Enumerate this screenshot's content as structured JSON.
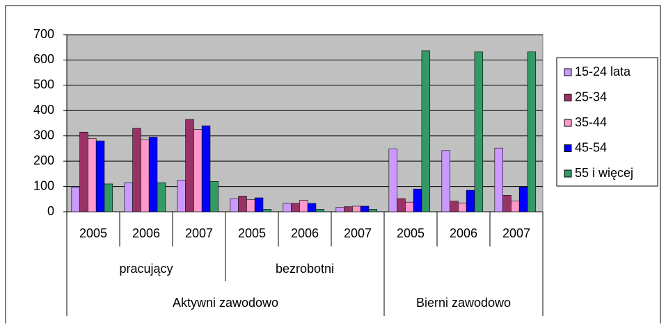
{
  "chart_data": {
    "type": "bar",
    "category_groups": [
      {
        "name": "Aktywni zawodowo",
        "groups": [
          {
            "name": "pracujący",
            "categories": [
              "2005",
              "2006",
              "2007"
            ]
          },
          {
            "name": "bezrobotni",
            "categories": [
              "2005",
              "2006",
              "2007"
            ]
          }
        ]
      },
      {
        "name": "Bierni zawodowo",
        "groups": [
          {
            "name": null,
            "categories": [
              "2005",
              "2006",
              "2007"
            ]
          }
        ]
      }
    ],
    "series": [
      {
        "name": "15-24 lata",
        "color": "#cc99ff",
        "values": [
          97,
          115,
          125,
          52,
          33,
          18,
          248,
          242,
          252
        ]
      },
      {
        "name": "25-34",
        "color": "#993366",
        "values": [
          315,
          330,
          365,
          62,
          33,
          20,
          52,
          42,
          65
        ]
      },
      {
        "name": "35-44",
        "color": "#ff99cc",
        "values": [
          290,
          285,
          325,
          48,
          45,
          22,
          38,
          35,
          42
        ]
      },
      {
        "name": "45-54",
        "color": "#0000ff",
        "values": [
          280,
          295,
          340,
          55,
          33,
          22,
          90,
          85,
          98
        ]
      },
      {
        "name": "55 i więcej",
        "color": "#339966",
        "values": [
          110,
          115,
          120,
          10,
          10,
          10,
          637,
          632,
          632
        ]
      }
    ],
    "ylim": [
      0,
      700
    ],
    "yticks": [
      0,
      100,
      200,
      300,
      400,
      500,
      600,
      700
    ],
    "grid": true,
    "legend": "right"
  }
}
